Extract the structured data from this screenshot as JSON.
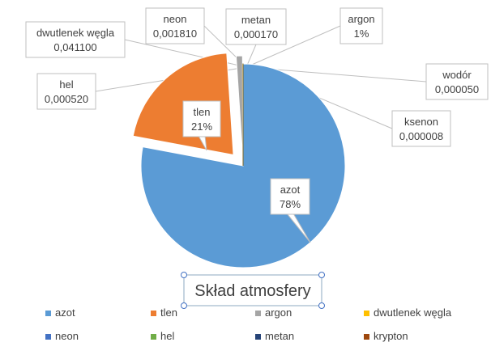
{
  "chart_data": {
    "type": "pie",
    "title": "Skład atmosfery",
    "slices": [
      {
        "name": "azot",
        "value": 78,
        "label": "78%",
        "color": "#5B9BD5"
      },
      {
        "name": "tlen",
        "value": 21,
        "label": "21%",
        "color": "#ED7D31"
      },
      {
        "name": "argon",
        "value": 1,
        "label": "1%",
        "color": "#A5A5A5"
      },
      {
        "name": "dwutlenek węgla",
        "value": 0.0411,
        "label": "0,041100",
        "color": "#FFC000"
      },
      {
        "name": "neon",
        "value": 0.00181,
        "label": "0,001810",
        "color": "#4472C4"
      },
      {
        "name": "hel",
        "value": 0.00052,
        "label": "0,000520",
        "color": "#70AD47"
      },
      {
        "name": "metan",
        "value": 0.00017,
        "label": "0,000170",
        "color": "#264478"
      },
      {
        "name": "krypton",
        "value": 0.000114,
        "label": "",
        "color": "#9E480E"
      },
      {
        "name": "wodór",
        "value": 5e-05,
        "label": "0,000050",
        "color": "#636363"
      },
      {
        "name": "ksenon",
        "value": 8e-06,
        "label": "0,000008",
        "color": "#997300"
      }
    ],
    "legend": {
      "position": "bottom",
      "items": [
        "azot",
        "tlen",
        "argon",
        "dwutlenek węgla",
        "neon",
        "hel",
        "metan",
        "krypton"
      ]
    }
  }
}
